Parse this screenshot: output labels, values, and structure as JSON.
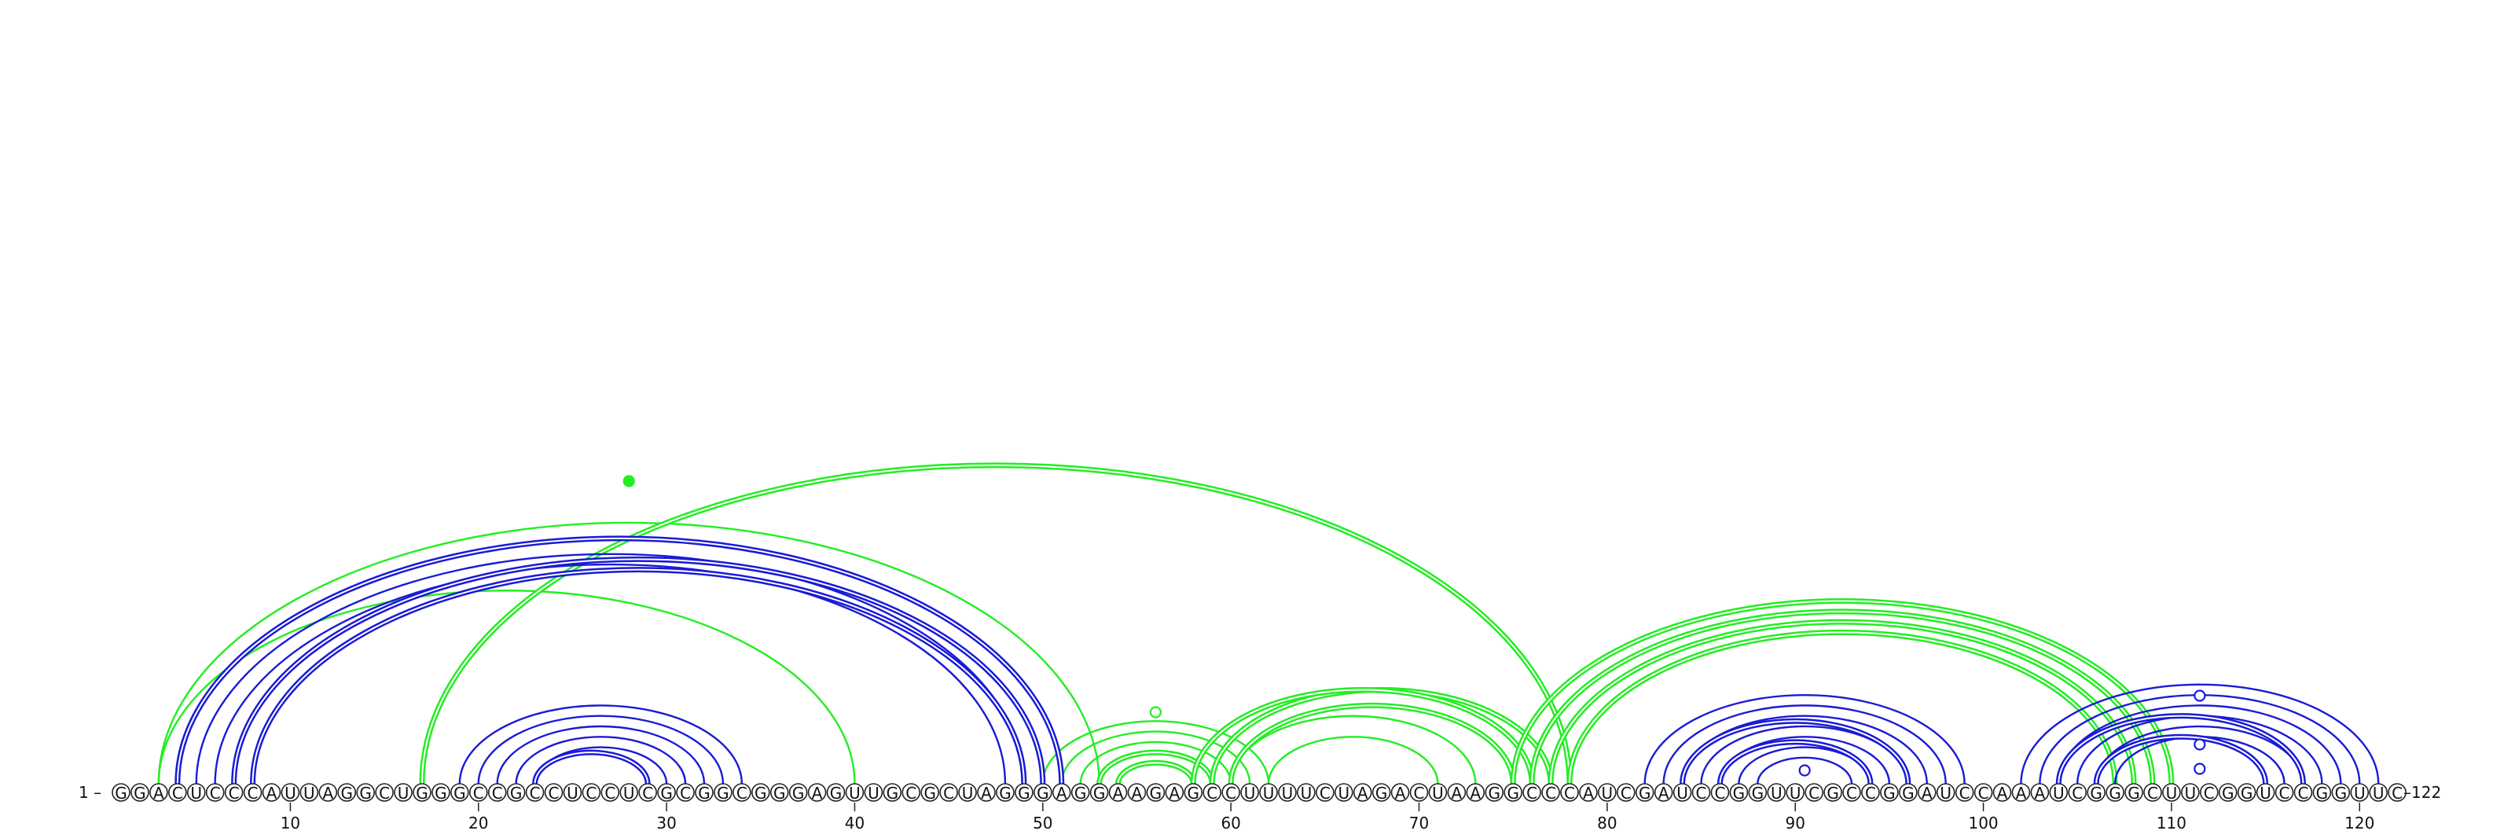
{
  "sequence": "GGACUCCCAUUAGGCUGGGCCGCCUCCUCGCGGCGGGAGUUGCGCUAGGGAGGAAGAGCCUUUUCUAGACUAAGGCCCAUCGAUCCGGUUCGCCGGAUCCAAAUCGGGCUUCGGUCCGGUUC",
  "start_label": "1 –",
  "end_label": "–122",
  "ticks": [
    "10",
    "20",
    "30",
    "40",
    "50",
    "60",
    "70",
    "80",
    "90",
    "100",
    "110",
    "120"
  ],
  "colors": {
    "blue": "#1a1ad6",
    "green": "#22ee22"
  },
  "icons": {
    "markers": "circle-marker"
  },
  "arcs": {
    "blue_single": [
      [
        5,
        49
      ],
      [
        6,
        48
      ],
      [
        19,
        34
      ],
      [
        20,
        33
      ],
      [
        21,
        32
      ],
      [
        22,
        31
      ],
      [
        23,
        30
      ],
      [
        82,
        99
      ],
      [
        83,
        98
      ],
      [
        84,
        97
      ],
      [
        85,
        96
      ],
      [
        86,
        95
      ],
      [
        87,
        94
      ],
      [
        88,
        93
      ],
      [
        102,
        121
      ],
      [
        103,
        120
      ],
      [
        104,
        119
      ],
      [
        105,
        118
      ],
      [
        106,
        117
      ],
      [
        107,
        116
      ]
    ],
    "blue_double": [
      [
        4,
        51
      ],
      [
        7,
        50
      ],
      [
        8,
        49
      ],
      [
        23,
        29
      ],
      [
        84,
        96
      ],
      [
        86,
        94
      ],
      [
        104,
        117
      ],
      [
        106,
        115
      ]
    ],
    "green_single": [
      [
        3,
        53
      ],
      [
        3,
        40
      ],
      [
        50,
        62
      ],
      [
        51,
        61
      ],
      [
        52,
        60
      ],
      [
        60,
        73
      ],
      [
        62,
        71
      ]
    ],
    "green_double": [
      [
        17,
        78
      ],
      [
        53,
        59
      ],
      [
        54,
        58
      ],
      [
        59,
        77
      ],
      [
        58,
        76
      ],
      [
        60,
        75
      ],
      [
        75,
        110
      ],
      [
        76,
        109
      ],
      [
        77,
        108
      ],
      [
        78,
        107
      ]
    ],
    "markers": [
      {
        "i": 28,
        "j": 28,
        "type": "filled-green"
      },
      {
        "i": 56,
        "j": 56,
        "type": "open-green"
      },
      {
        "i": 90.5,
        "j": 90.5,
        "type": "open-blue"
      },
      {
        "i": 111.5,
        "j": 111.5,
        "type": "open-blue"
      },
      {
        "i": 111.5,
        "j": 111.5,
        "type": "open-blue"
      },
      {
        "i": 111.5,
        "j": 111.5,
        "type": "open-blue"
      }
    ]
  }
}
